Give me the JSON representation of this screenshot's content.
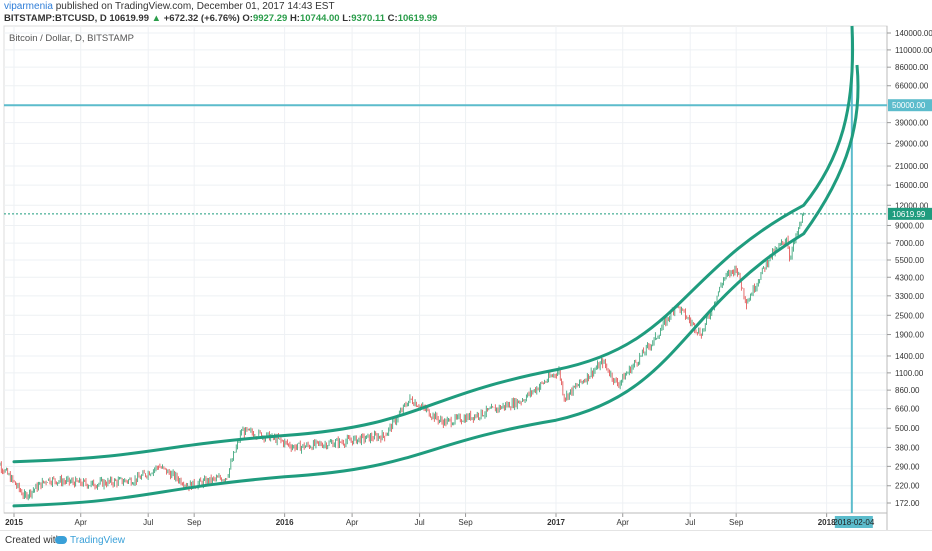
{
  "header": {
    "author": "viparmenia",
    "published": "published on TradingView.com, December 01, 2017 14:43 EST",
    "symbol": "BITSTAMP:BTCUSD, D",
    "last": "10619.99",
    "change": "+672.32 (+6.76%)",
    "open_label": "O:",
    "open": "9927.29",
    "high_label": "H:",
    "high": "10744.00",
    "low_label": "L:",
    "low": "9370.11",
    "close_label": "C:",
    "close": "10619.99"
  },
  "chart_label": "Bitcoin / Dollar, D, BITSTAMP",
  "footer": {
    "created": "Created with",
    "brand": "TradingView"
  },
  "colors": {
    "channel": "#1f9c7e",
    "level": "#5cbccc",
    "up": "#2a9d6f",
    "down": "#e04848",
    "last_price": "#1f9c7e"
  },
  "chart_data": {
    "type": "line",
    "scale": "log",
    "ylim": [
      150,
      140000
    ],
    "y_ticks": [
      "140000.00",
      "110000.00",
      "86000.00",
      "66000.00",
      "50000.00",
      "39000.00",
      "29000.00",
      "21000.00",
      "16000.00",
      "12000.00",
      "10619.99",
      "9000.00",
      "7000.00",
      "5500.00",
      "4300.00",
      "3300.00",
      "2500.00",
      "1900.00",
      "1400.00",
      "1100.00",
      "860.00",
      "660.00",
      "500.00",
      "380.00",
      "290.00",
      "220.00",
      "172.00"
    ],
    "x_ticks": [
      "2015",
      "Apr",
      "Jul",
      "Sep",
      "2016",
      "Apr",
      "Jul",
      "Sep",
      "2017",
      "Apr",
      "Jul",
      "Sep",
      "2018",
      "2018-02-04"
    ],
    "level_line": {
      "value": 50000,
      "label": "50000.00"
    },
    "target_date": "2018-02-04",
    "last_price": 10619.99,
    "channel": {
      "upper": [
        {
          "date": "2015-01",
          "value": 310
        },
        {
          "date": "2016-01",
          "value": 450
        },
        {
          "date": "2017-01",
          "value": 1150
        },
        {
          "date": "2017-12",
          "value": 12000
        }
      ],
      "lower": [
        {
          "date": "2015-01",
          "value": 165
        },
        {
          "date": "2016-01",
          "value": 250
        },
        {
          "date": "2017-01",
          "value": 560
        },
        {
          "date": "2017-12",
          "value": 8000
        }
      ]
    },
    "series": [
      {
        "points": [
          {
            "date": "2014-12-01",
            "value": 350
          },
          {
            "date": "2015-01-15",
            "value": 190
          },
          {
            "date": "2015-02-15",
            "value": 240
          },
          {
            "date": "2015-04-15",
            "value": 225
          },
          {
            "date": "2015-06-15",
            "value": 240
          },
          {
            "date": "2015-07-15",
            "value": 290
          },
          {
            "date": "2015-08-25",
            "value": 220
          },
          {
            "date": "2015-10-15",
            "value": 250
          },
          {
            "date": "2015-11-04",
            "value": 480
          },
          {
            "date": "2015-12-15",
            "value": 440
          },
          {
            "date": "2016-01-15",
            "value": 380
          },
          {
            "date": "2016-03-15",
            "value": 410
          },
          {
            "date": "2016-05-15",
            "value": 450
          },
          {
            "date": "2016-06-18",
            "value": 760
          },
          {
            "date": "2016-08-02",
            "value": 540
          },
          {
            "date": "2016-09-15",
            "value": 600
          },
          {
            "date": "2016-11-15",
            "value": 740
          },
          {
            "date": "2017-01-05",
            "value": 1140
          },
          {
            "date": "2017-01-12",
            "value": 770
          },
          {
            "date": "2017-03-05",
            "value": 1280
          },
          {
            "date": "2017-03-25",
            "value": 930
          },
          {
            "date": "2017-05-15",
            "value": 1800
          },
          {
            "date": "2017-06-12",
            "value": 2900
          },
          {
            "date": "2017-07-16",
            "value": 1900
          },
          {
            "date": "2017-08-15",
            "value": 4200
          },
          {
            "date": "2017-09-01",
            "value": 4900
          },
          {
            "date": "2017-09-15",
            "value": 3000
          },
          {
            "date": "2017-10-15",
            "value": 5600
          },
          {
            "date": "2017-11-08",
            "value": 7500
          },
          {
            "date": "2017-11-12",
            "value": 5700
          },
          {
            "date": "2017-12-01",
            "value": 10619.99
          }
        ]
      }
    ]
  }
}
